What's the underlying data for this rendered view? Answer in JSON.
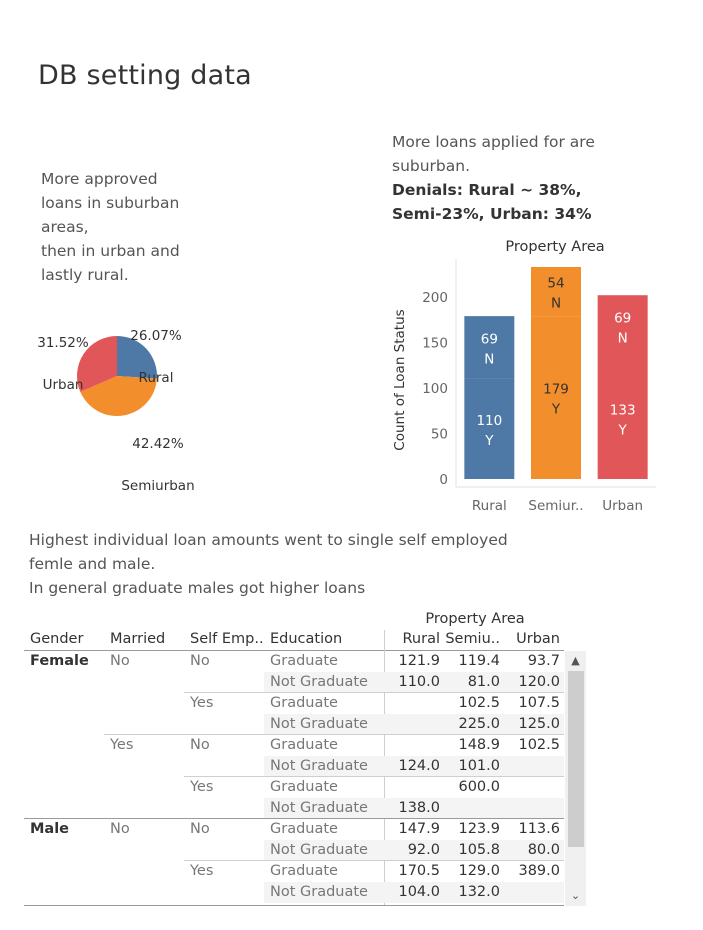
{
  "page": {
    "title": "DB setting data"
  },
  "annotations": {
    "pie_note": "More approved\nloans  in suburban\nareas,\nthen in urban and\nlastly rural.",
    "bar_note": "More loans applied for are\nsuburban.",
    "bar_note_bold": "Denials: Rural ~ 38%,\nSemi-23%, Urban: 34%",
    "table_note": "Highest individual loan amounts went to single self employed\nfemle and male.\nIn general graduate males got higher loans"
  },
  "colors": {
    "rural": "#4e79a7",
    "semiurban": "#f28e2b",
    "urban": "#e15759"
  },
  "chart_data": [
    {
      "type": "pie",
      "slices": [
        {
          "name": "Rural",
          "percent": 26.07,
          "label_pct": "26.07%",
          "color": "#4e79a7"
        },
        {
          "name": "Semiurban",
          "percent": 42.42,
          "label_pct": "42.42%",
          "color": "#f28e2b"
        },
        {
          "name": "Urban",
          "percent": 31.52,
          "label_pct": "31.52%",
          "color": "#e15759"
        }
      ]
    },
    {
      "type": "bar",
      "stacked": true,
      "title": "Property Area",
      "ylabel": "Count of Loan Status",
      "xlabel": "",
      "categories": [
        "Rural",
        "Semiur..",
        "Urban"
      ],
      "category_colors": [
        "#4e79a7",
        "#f28e2b",
        "#e15759"
      ],
      "series": [
        {
          "name": "Y",
          "values": [
            110,
            179,
            133
          ]
        },
        {
          "name": "N",
          "values": [
            69,
            54,
            69
          ]
        }
      ],
      "ylim": [
        0,
        233
      ],
      "yticks": [
        0,
        50,
        100,
        150,
        200
      ],
      "grid": false
    },
    {
      "type": "table",
      "group_header": "Property Area",
      "columns": [
        "Gender",
        "Married",
        "Self Emp..",
        "Education",
        "Rural",
        "Semiu..",
        "Urban"
      ],
      "rows": [
        {
          "gender": "Female",
          "married": "No",
          "self": "No",
          "edu": "Graduate",
          "rural": "121.9",
          "semi": "119.4",
          "urban": "93.7"
        },
        {
          "gender": "",
          "married": "",
          "self": "",
          "edu": "Not Graduate",
          "rural": "110.0",
          "semi": "81.0",
          "urban": "120.0"
        },
        {
          "gender": "",
          "married": "",
          "self": "Yes",
          "edu": "Graduate",
          "rural": "",
          "semi": "102.5",
          "urban": "107.5"
        },
        {
          "gender": "",
          "married": "",
          "self": "",
          "edu": "Not Graduate",
          "rural": "",
          "semi": "225.0",
          "urban": "125.0"
        },
        {
          "gender": "",
          "married": "Yes",
          "self": "No",
          "edu": "Graduate",
          "rural": "",
          "semi": "148.9",
          "urban": "102.5"
        },
        {
          "gender": "",
          "married": "",
          "self": "",
          "edu": "Not Graduate",
          "rural": "124.0",
          "semi": "101.0",
          "urban": ""
        },
        {
          "gender": "",
          "married": "",
          "self": "Yes",
          "edu": "Graduate",
          "rural": "",
          "semi": "600.0",
          "urban": ""
        },
        {
          "gender": "",
          "married": "",
          "self": "",
          "edu": "Not Graduate",
          "rural": "138.0",
          "semi": "",
          "urban": ""
        },
        {
          "gender": "Male",
          "married": "No",
          "self": "No",
          "edu": "Graduate",
          "rural": "147.9",
          "semi": "123.9",
          "urban": "113.6"
        },
        {
          "gender": "",
          "married": "",
          "self": "",
          "edu": "Not Graduate",
          "rural": "92.0",
          "semi": "105.8",
          "urban": "80.0"
        },
        {
          "gender": "",
          "married": "",
          "self": "Yes",
          "edu": "Graduate",
          "rural": "170.5",
          "semi": "129.0",
          "urban": "389.0"
        },
        {
          "gender": "",
          "married": "",
          "self": "",
          "edu": "Not Graduate",
          "rural": "104.0",
          "semi": "132.0",
          "urban": ""
        }
      ]
    }
  ],
  "scrollbar": {
    "up_icon": "caret-up-icon",
    "down_icon": "chevron-down-icon"
  }
}
